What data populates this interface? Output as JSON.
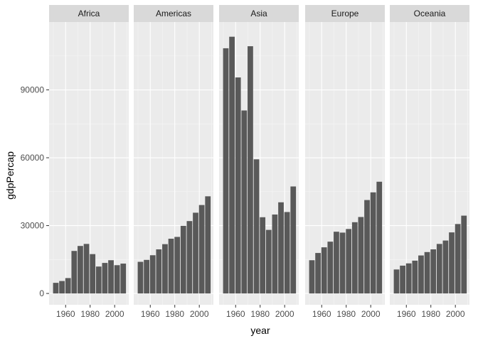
{
  "chart_data": {
    "type": "bar",
    "facet_by": "continent",
    "xlabel": "year",
    "ylabel": "gdpPercap",
    "ylim": [
      -5000,
      120000
    ],
    "yticks": [
      0,
      30000,
      60000,
      90000
    ],
    "ytick_labels": [
      "0",
      "30000",
      "60000",
      "90000"
    ],
    "xlim": [
      1946.5,
      2011.5
    ],
    "xticks": [
      1960,
      1980,
      2000
    ],
    "xtick_labels": [
      "1960",
      "1980",
      "2000"
    ],
    "x": [
      1952,
      1957,
      1962,
      1967,
      1972,
      1977,
      1982,
      1987,
      1992,
      1997,
      2002,
      2007
    ],
    "bar_width_years": 4.5,
    "grid": true,
    "legend": "none",
    "colors": {
      "bar": "#595959",
      "panel_bg": "#ebebeb",
      "strip_bg": "#d9d9d9",
      "grid_major": "#ffffff",
      "grid_minor": "#f5f5f5",
      "tick": "#333333"
    },
    "panels": [
      {
        "label": "Africa",
        "values": [
          4700,
          5500,
          6800,
          18800,
          21000,
          21900,
          17400,
          11900,
          13500,
          14700,
          12500,
          13200
        ]
      },
      {
        "label": "Americas",
        "values": [
          13990,
          14850,
          16900,
          19500,
          21800,
          24200,
          25000,
          29900,
          32000,
          35700,
          39100,
          42950
        ]
      },
      {
        "label": "Asia",
        "values": [
          108400,
          113500,
          95500,
          80900,
          109300,
          59300,
          33700,
          28100,
          34900,
          40300,
          36000,
          47300
        ]
      },
      {
        "label": "Europe",
        "values": [
          14700,
          17900,
          20400,
          22900,
          27300,
          26900,
          28500,
          31500,
          33800,
          41300,
          44700,
          49400
        ]
      },
      {
        "label": "Oceania",
        "values": [
          10600,
          12300,
          13300,
          14500,
          16800,
          18300,
          19500,
          21900,
          23400,
          27000,
          30700,
          34400
        ]
      }
    ]
  }
}
